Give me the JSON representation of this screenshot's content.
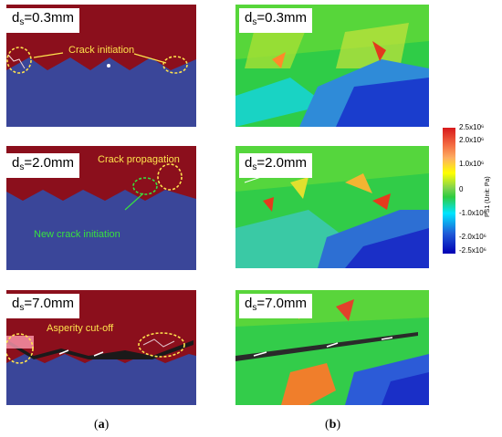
{
  "panel_a": {
    "top": {
      "ds_value": "0.3mm",
      "annotations": [
        "Crack initiation"
      ]
    },
    "middle": {
      "ds_value": "2.0mm",
      "annotations": [
        "Crack propagation",
        "New crack initiation"
      ]
    },
    "bottom": {
      "ds_value": "7.0mm",
      "annotations": [
        "Asperity cut-off"
      ]
    },
    "caption": "a"
  },
  "panel_b": {
    "top": {
      "ds_value": "0.3mm"
    },
    "middle": {
      "ds_value": "2.0mm"
    },
    "bottom": {
      "ds_value": "7.0mm"
    },
    "caption": "b"
  },
  "ds_prefix": "d",
  "ds_subscript": "s",
  "colorbar": {
    "title": "PS1 (Unit: Pa)",
    "ticks": [
      "2.5x10⁶",
      "2.0x10⁶",
      "1.0x10⁶",
      "0",
      "-1.0x10⁶",
      "-2.0x10⁶",
      "-2.5x10⁶"
    ],
    "colors": [
      "#d7191c",
      "#fdae61",
      "#ffff00",
      "#2ecc40",
      "#00e5ff",
      "#1f5bd8",
      "#0000b4"
    ]
  },
  "colors": {
    "rock_upper": "#8b0f1c",
    "rock_lower": "#3a4699",
    "annotation_yellow": "#ffe34d",
    "annotation_green": "#38e040"
  }
}
